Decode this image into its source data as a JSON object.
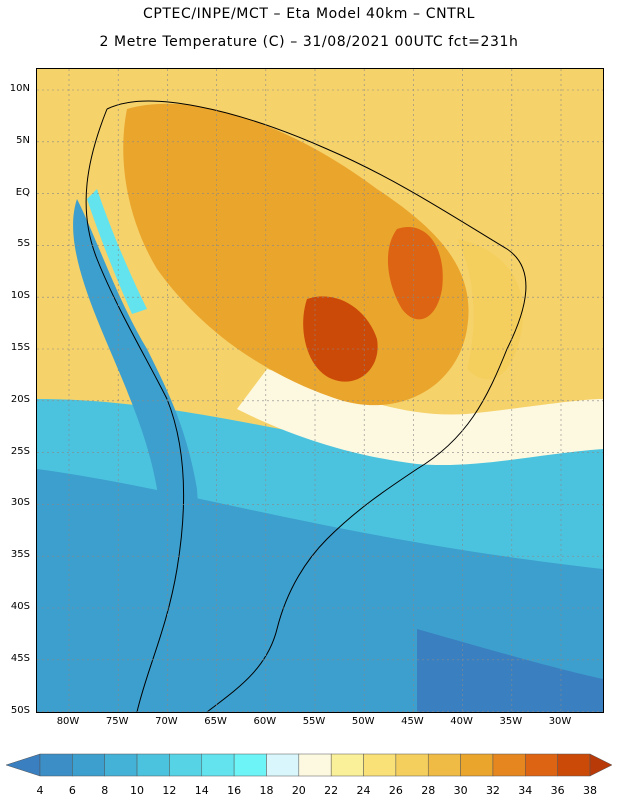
{
  "title": {
    "line1": "CPTEC/INPE/MCT –  Eta Model 40km – CNTRL",
    "line2": "2 Metre Temperature (C) – 31/08/2021 00UTC fct=231h"
  },
  "axes": {
    "lat_labels": [
      "10N",
      "5N",
      "EQ",
      "5S",
      "10S",
      "15S",
      "20S",
      "25S",
      "30S",
      "35S",
      "40S",
      "45S",
      "50S"
    ],
    "lon_labels": [
      "80W",
      "75W",
      "70W",
      "65W",
      "60W",
      "55W",
      "50W",
      "45W",
      "40W",
      "35W",
      "30W"
    ]
  },
  "colorbar": {
    "labels": [
      "4",
      "6",
      "8",
      "10",
      "12",
      "14",
      "16",
      "18",
      "20",
      "22",
      "24",
      "26",
      "28",
      "30",
      "32",
      "34",
      "36",
      "38"
    ],
    "colors": [
      "#3a7fc0",
      "#3b8fc6",
      "#3d9fcd",
      "#44b1d6",
      "#4cc3de",
      "#56d4e6",
      "#62e3ee",
      "#6cf4f6",
      "#d8f6fb",
      "#fdf9e1",
      "#fbf09a",
      "#f9e177",
      "#f4cf5e",
      "#efbb44",
      "#eaa52d",
      "#e5861f",
      "#dd6412",
      "#cc4a08",
      "#b83a08"
    ]
  }
}
